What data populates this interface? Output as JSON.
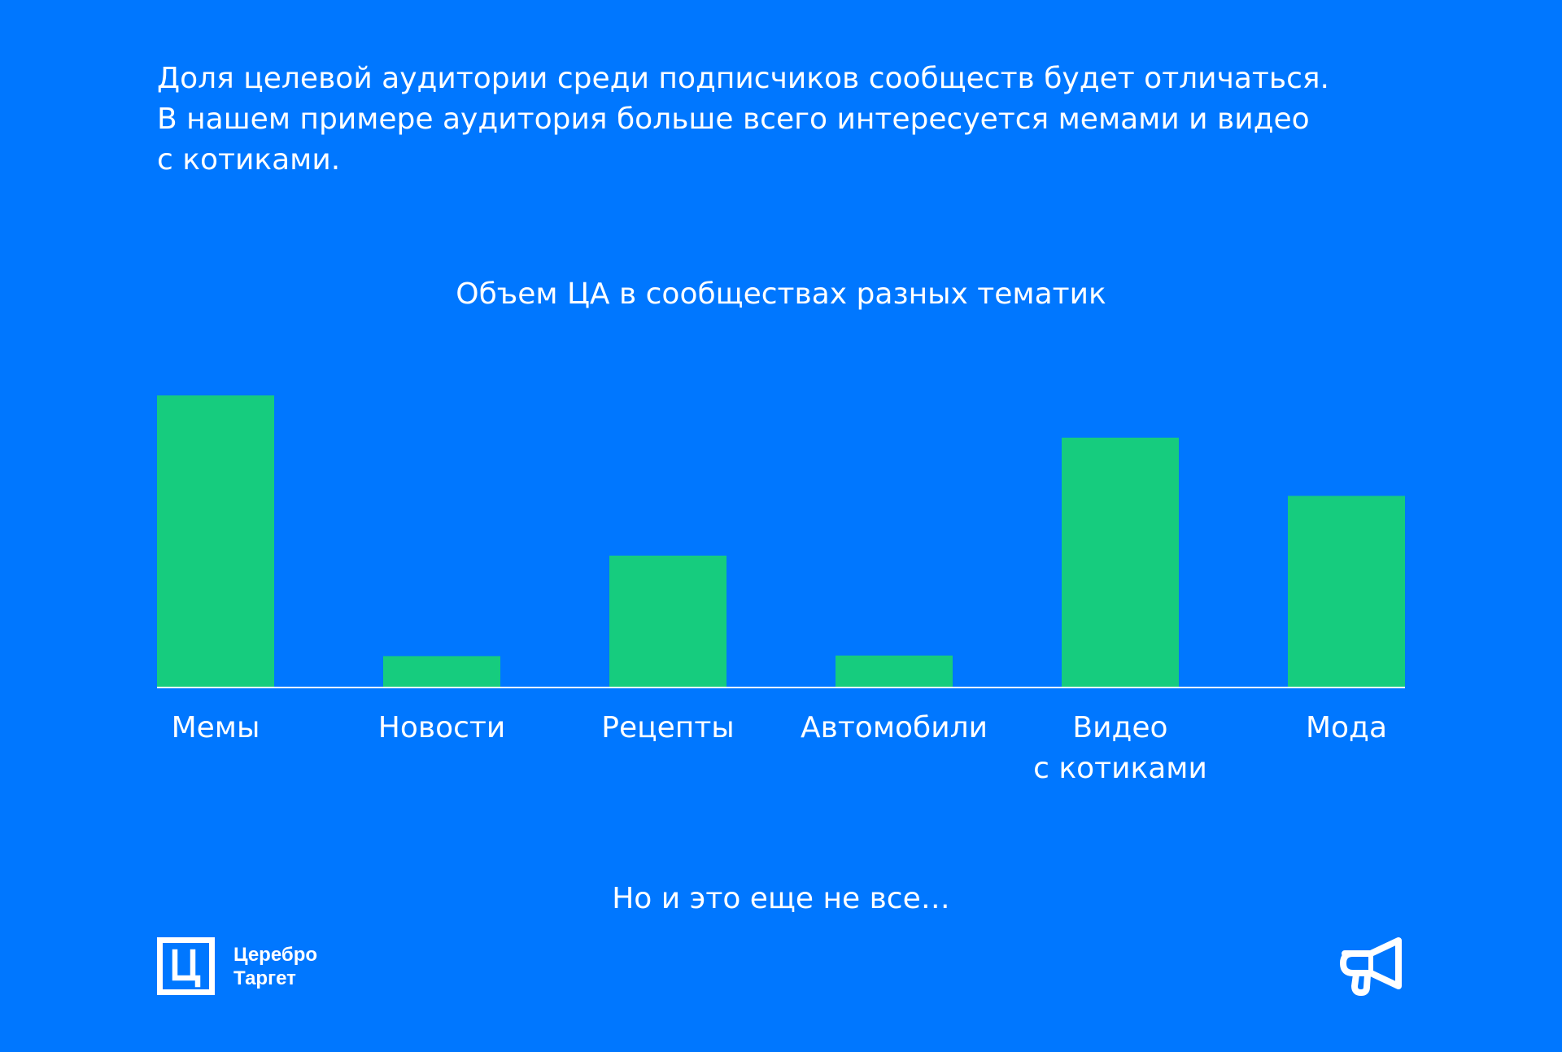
{
  "intro": {
    "lines": [
      "Доля целевой аудитории среди подписчиков сообществ будет отличаться.",
      "В нашем примере аудитория больше всего интересуется мемами и видео",
      "с котиками."
    ]
  },
  "chart_data": {
    "type": "bar",
    "title": "Объем ЦА в сообществах разных тематик",
    "categories": [
      "Мемы",
      "Новости",
      "Рецепты",
      "Автомобили",
      "Видео с котиками",
      "Мода"
    ],
    "category_lines": [
      [
        "Мемы"
      ],
      [
        "Новости"
      ],
      [
        "Рецепты"
      ],
      [
        "Автомобили"
      ],
      [
        "Видео",
        "с котиками"
      ],
      [
        "Мода"
      ]
    ],
    "values": [
      100,
      10.5,
      45,
      10.7,
      85.5,
      65.5
    ],
    "ylim": [
      0,
      100
    ],
    "xlabel": "",
    "ylabel": "",
    "grid": false,
    "bar_color": "#16CC7E",
    "axis_color": "#FFFFFF"
  },
  "footer": {
    "text": "Но и это еще не все…"
  },
  "logo": {
    "mark": "Ц",
    "line1": "Церебро",
    "line2": "Таргет",
    "icon": "cerebro-target-logo-icon"
  },
  "corner_icon": "megaphone-icon",
  "colors": {
    "background": "#0077FF",
    "accent": "#16CC7E",
    "text": "#FFFFFF"
  }
}
